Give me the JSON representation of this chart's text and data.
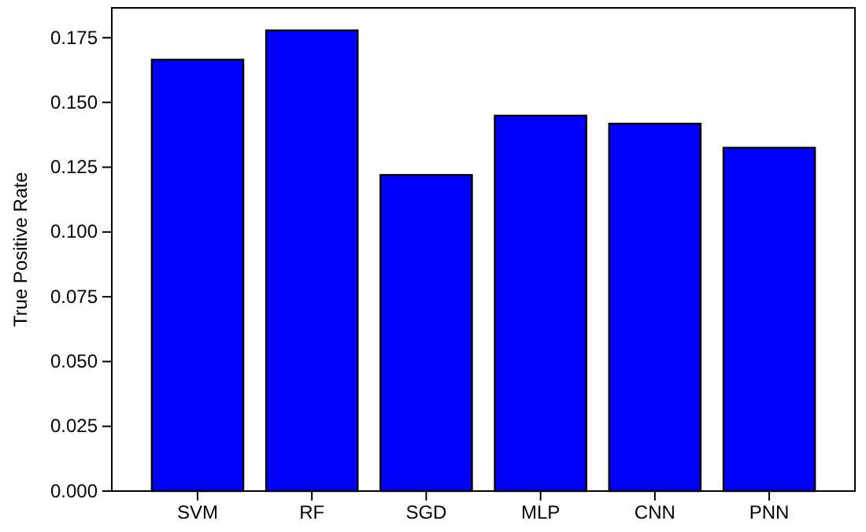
{
  "chart_data": {
    "type": "bar",
    "ylabel": "True Positive Rate",
    "categories": [
      "SVM",
      "RF",
      "SGD",
      "MLP",
      "CNN",
      "PNN"
    ],
    "values": [
      0.1665,
      0.1778,
      0.122,
      0.1449,
      0.1418,
      0.1325
    ],
    "color": "#0000ff",
    "ylim": [
      0,
      0.1865
    ],
    "yticks": [
      {
        "value": 0,
        "label": "0.000"
      },
      {
        "value": 0.025,
        "label": "0.025"
      },
      {
        "value": 0.05,
        "label": "0.050"
      },
      {
        "value": 0.075,
        "label": "0.075"
      },
      {
        "value": 0.1,
        "label": "0.100"
      },
      {
        "value": 0.125,
        "label": "0.125"
      },
      {
        "value": 0.15,
        "label": "0.150"
      },
      {
        "value": 0.175,
        "label": "0.175"
      }
    ]
  }
}
